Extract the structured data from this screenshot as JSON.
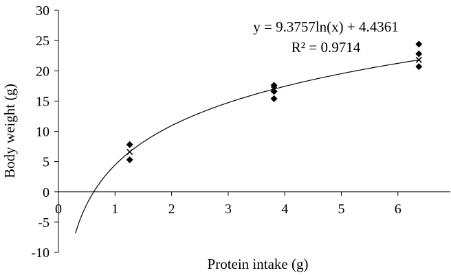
{
  "chart_data": {
    "type": "scatter",
    "xlabel": "Protein intake (g)",
    "ylabel": "Body weight (g)",
    "xlim": [
      0,
      7
    ],
    "ylim": [
      -10,
      30
    ],
    "x_ticks": [
      0,
      1,
      2,
      3,
      4,
      5,
      6
    ],
    "y_ticks": [
      -10,
      -5,
      0,
      5,
      10,
      15,
      20,
      25,
      30
    ],
    "grid": false,
    "legend": "none",
    "series": [
      {
        "marker": "diamond",
        "color": "#000000",
        "points": [
          {
            "x": 1.26,
            "y": 7.8
          },
          {
            "x": 1.26,
            "y": 5.3
          },
          {
            "x": 3.81,
            "y": 17.6
          },
          {
            "x": 3.81,
            "y": 16.6
          },
          {
            "x": 3.81,
            "y": 15.4
          },
          {
            "x": 6.37,
            "y": 24.4
          },
          {
            "x": 6.37,
            "y": 22.8
          },
          {
            "x": 6.37,
            "y": 20.7
          }
        ]
      },
      {
        "marker": "x",
        "color": "#000000",
        "points": [
          {
            "x": 1.26,
            "y": 6.6
          },
          {
            "x": 3.81,
            "y": 16.9
          },
          {
            "x": 6.37,
            "y": 21.8
          }
        ]
      }
    ],
    "trendline": {
      "type": "logarithmic",
      "a": 9.3757,
      "b": 4.4361,
      "x_range": [
        0.3,
        6.37
      ],
      "equation": "y = 9.3757ln(x) + 4.4361",
      "r_squared": "R² = 0.9714"
    }
  }
}
